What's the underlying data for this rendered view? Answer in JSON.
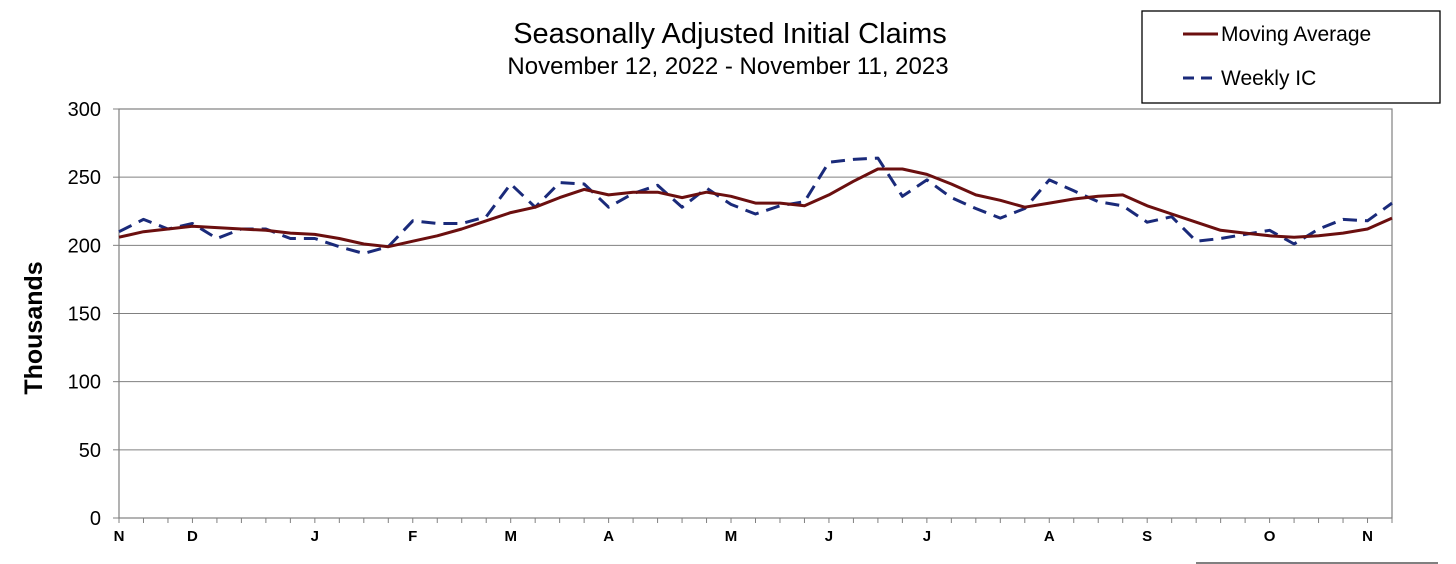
{
  "chart_data": {
    "type": "line",
    "title": "Seasonally Adjusted Initial Claims",
    "subtitle": "November 12, 2022 - November 11, 2023",
    "ylabel": "Thousands",
    "xlabel": "",
    "ylim": [
      0,
      300
    ],
    "yticks": [
      0,
      50,
      100,
      150,
      200,
      250,
      300
    ],
    "grid": "horizontal",
    "legend_position": "top-right",
    "x": [
      "2022-11-12",
      "2022-11-19",
      "2022-11-26",
      "2022-12-03",
      "2022-12-10",
      "2022-12-17",
      "2022-12-24",
      "2022-12-31",
      "2023-01-07",
      "2023-01-14",
      "2023-01-21",
      "2023-01-28",
      "2023-02-04",
      "2023-02-11",
      "2023-02-18",
      "2023-02-25",
      "2023-03-04",
      "2023-03-11",
      "2023-03-18",
      "2023-03-25",
      "2023-04-01",
      "2023-04-08",
      "2023-04-15",
      "2023-04-22",
      "2023-04-29",
      "2023-05-06",
      "2023-05-13",
      "2023-05-20",
      "2023-05-27",
      "2023-06-03",
      "2023-06-10",
      "2023-06-17",
      "2023-06-24",
      "2023-07-01",
      "2023-07-08",
      "2023-07-15",
      "2023-07-22",
      "2023-07-29",
      "2023-08-05",
      "2023-08-12",
      "2023-08-19",
      "2023-08-26",
      "2023-09-02",
      "2023-09-09",
      "2023-09-16",
      "2023-09-23",
      "2023-09-30",
      "2023-10-07",
      "2023-10-14",
      "2023-10-21",
      "2023-10-28",
      "2023-11-04",
      "2023-11-11"
    ],
    "x_tick_labels": [
      {
        "index": 0,
        "label": "N"
      },
      {
        "index": 3,
        "label": "D"
      },
      {
        "index": 8,
        "label": "J"
      },
      {
        "index": 12,
        "label": "F"
      },
      {
        "index": 16,
        "label": "M"
      },
      {
        "index": 20,
        "label": "A"
      },
      {
        "index": 25,
        "label": "M"
      },
      {
        "index": 29,
        "label": "J"
      },
      {
        "index": 33,
        "label": "J"
      },
      {
        "index": 38,
        "label": "A"
      },
      {
        "index": 42,
        "label": "S"
      },
      {
        "index": 47,
        "label": "O"
      },
      {
        "index": 51,
        "label": "N"
      }
    ],
    "series": [
      {
        "name": "Moving Average",
        "color": "#6b0f0f",
        "style": "solid",
        "values": [
          206,
          210,
          212,
          214,
          213,
          212,
          211,
          209,
          208,
          205,
          201,
          199,
          203,
          207,
          212,
          218,
          224,
          228,
          235,
          241,
          237,
          239,
          239,
          235,
          239,
          236,
          231,
          231,
          229,
          237,
          247,
          256,
          256,
          252,
          245,
          237,
          233,
          228,
          231,
          234,
          236,
          237,
          229,
          223,
          217,
          211,
          209,
          207,
          206,
          207,
          209,
          212,
          220
        ]
      },
      {
        "name": "Weekly IC",
        "color": "#1a2a7a",
        "style": "dashed",
        "values": [
          210,
          219,
          212,
          216,
          205,
          212,
          212,
          205,
          205,
          199,
          194,
          199,
          218,
          216,
          216,
          221,
          245,
          228,
          246,
          245,
          228,
          238,
          244,
          228,
          242,
          230,
          223,
          229,
          232,
          261,
          263,
          264,
          236,
          248,
          235,
          227,
          220,
          227,
          248,
          240,
          232,
          229,
          217,
          221,
          203,
          205,
          208,
          211,
          201,
          212,
          219,
          218,
          231
        ]
      }
    ]
  }
}
